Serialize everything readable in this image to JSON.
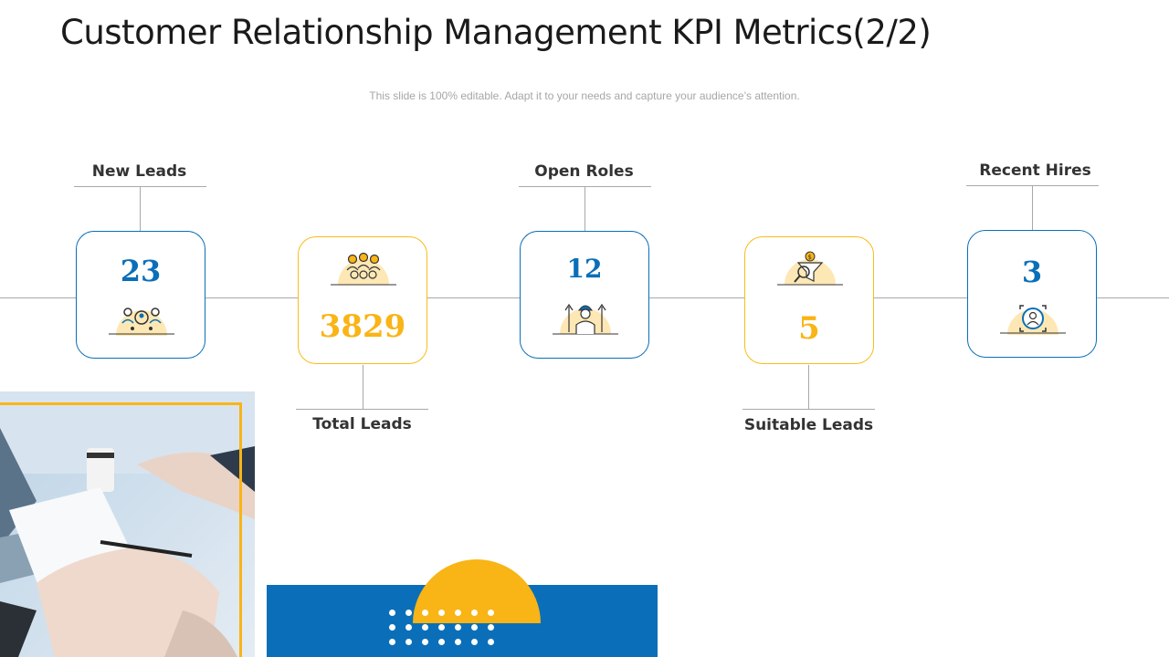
{
  "slide": {
    "title": "Customer Relationship Management KPI Metrics(2/2)",
    "subtitle": "This slide is 100% editable. Adapt it to your needs and capture your audience’s attention."
  },
  "colors": {
    "blue": "#0a6fb8",
    "yellow": "#f9b416",
    "text_dark": "#1a1a1a",
    "line_gray": "#a8a8a8"
  },
  "kpis": [
    {
      "label": "New Leads",
      "value": "23",
      "icon": "people-group-icon",
      "accent": "blue"
    },
    {
      "label": "Total Leads",
      "value": "3829",
      "icon": "crowd-icon",
      "accent": "yellow"
    },
    {
      "label": "Open Roles",
      "value": "12",
      "icon": "worker-upgrade-icon",
      "accent": "blue"
    },
    {
      "label": "Suitable Leads",
      "value": "5",
      "icon": "funnel-search-icon",
      "accent": "yellow"
    },
    {
      "label": "Recent Hires",
      "value": "3",
      "icon": "target-person-icon",
      "accent": "blue"
    }
  ],
  "decor": {
    "photo": "business-meeting-photo",
    "banner": "blue-banner-with-yellow-half-circle"
  }
}
